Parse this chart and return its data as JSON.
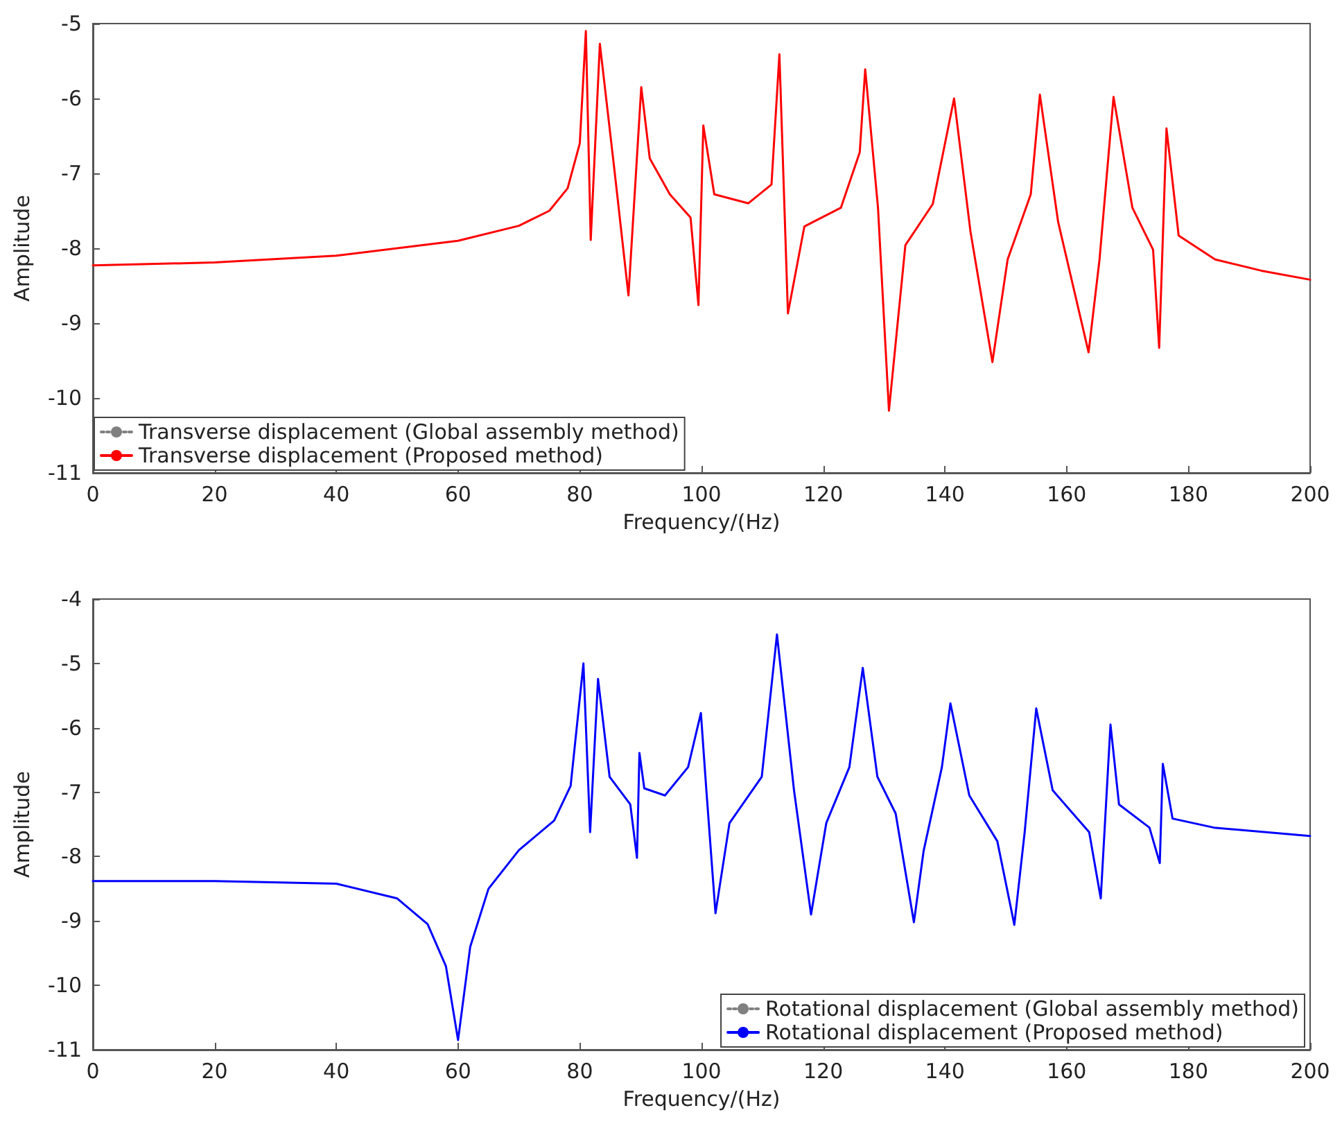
{
  "chart_data": [
    {
      "type": "line",
      "xlabel": "Frequency/(Hz)",
      "ylabel": "Amplitude",
      "xlim": [
        0,
        200
      ],
      "xticks": [
        0,
        20,
        40,
        60,
        80,
        100,
        120,
        140,
        160,
        180,
        200
      ],
      "ylim": [
        -11,
        -5
      ],
      "yticks": [
        -11,
        -10,
        -9,
        -8,
        -7,
        -6,
        -5
      ],
      "legend": "bottom left",
      "x": [
        0,
        20,
        40,
        60,
        70,
        75,
        78,
        80,
        81.0,
        81.8,
        83.3,
        85.7,
        88.0,
        90.1,
        91.5,
        94.8,
        98.2,
        99.5,
        100.3,
        102.1,
        107.7,
        111.5,
        112.8,
        114.2,
        116.9,
        122.9,
        126.0,
        126.9,
        129.0,
        130.8,
        133.5,
        138.0,
        141.5,
        144.2,
        147.8,
        150.3,
        154.1,
        155.6,
        158.6,
        163.6,
        165.4,
        167.7,
        170.8,
        174.2,
        175.2,
        176.4,
        178.4,
        184.4,
        192.0,
        200
      ],
      "series": [
        {
          "name": "Transverse displacement (Global assembly method)",
          "color": "#808080",
          "line_style": "dotted",
          "values": [
            null,
            null,
            null,
            null,
            null,
            null,
            null,
            null,
            null,
            null,
            null,
            null,
            null,
            null,
            null,
            null,
            null,
            null,
            null,
            null,
            null,
            null,
            null,
            null,
            null,
            null,
            null,
            null,
            null,
            null,
            null,
            null,
            null,
            null,
            null,
            null,
            null,
            null,
            null,
            null,
            null,
            null,
            null,
            null,
            null,
            null,
            null,
            null,
            null,
            null
          ]
        },
        {
          "name": "Transverse displacement (Proposed method)",
          "color": "#ff0000",
          "line_style": "solid",
          "values": [
            -8.23,
            -8.19,
            -8.1,
            -7.9,
            -7.7,
            -7.5,
            -7.2,
            -6.6,
            -5.1,
            -7.89,
            -5.27,
            -6.96,
            -8.63,
            -5.85,
            -6.8,
            -7.28,
            -7.59,
            -8.76,
            -6.36,
            -7.28,
            -7.4,
            -7.15,
            -5.41,
            -8.87,
            -7.71,
            -7.46,
            -6.72,
            -5.61,
            -7.46,
            -10.17,
            -7.96,
            -7.41,
            -6.0,
            -7.78,
            -9.52,
            -8.15,
            -7.28,
            -5.95,
            -7.65,
            -9.39,
            -8.15,
            -5.98,
            -7.46,
            -8.02,
            -9.33,
            -6.4,
            -7.83,
            -8.15,
            -8.3,
            -8.42
          ]
        }
      ]
    },
    {
      "type": "line",
      "xlabel": "Frequency/(Hz)",
      "ylabel": "Amplitude",
      "xlim": [
        0,
        200
      ],
      "xticks": [
        0,
        20,
        40,
        60,
        80,
        100,
        120,
        140,
        160,
        180,
        200
      ],
      "ylim": [
        -11,
        -4
      ],
      "yticks": [
        -11,
        -10,
        -9,
        -8,
        -7,
        -6,
        -5,
        -4
      ],
      "legend": "bottom right",
      "x": [
        0,
        20,
        40,
        50,
        55,
        58,
        60,
        62,
        65,
        70,
        75.8,
        78.5,
        80.6,
        81.7,
        83.0,
        84.9,
        88.3,
        89.4,
        89.8,
        90.6,
        94.0,
        97.8,
        99.9,
        100.8,
        102.3,
        104.6,
        109.9,
        112.4,
        115.2,
        118.0,
        120.5,
        124.3,
        126.5,
        128.9,
        131.9,
        134.9,
        136.5,
        139.5,
        140.9,
        144.0,
        148.6,
        151.4,
        153.1,
        155.0,
        157.7,
        163.7,
        165.6,
        167.2,
        168.6,
        173.6,
        175.3,
        175.8,
        177.4,
        184.2,
        200
      ],
      "series": [
        {
          "name": "Rotational displacement (Global assembly method)",
          "color": "#808080",
          "line_style": "dotted",
          "values": [
            null,
            null,
            null,
            null,
            null,
            null,
            null,
            null,
            null,
            null,
            null,
            null,
            null,
            null,
            null,
            null,
            null,
            null,
            null,
            null,
            null,
            null,
            null,
            null,
            null,
            null,
            null,
            null,
            null,
            null,
            null,
            null,
            null,
            null,
            null,
            null,
            null,
            null,
            null,
            null,
            null,
            null,
            null,
            null,
            null,
            null,
            null,
            null,
            null,
            null,
            null,
            null,
            null,
            null,
            null
          ]
        },
        {
          "name": "Rotational displacement (Proposed method)",
          "color": "#0000ff",
          "line_style": "solid",
          "values": [
            -8.38,
            -8.38,
            -8.42,
            -8.65,
            -9.05,
            -9.7,
            -10.85,
            -9.4,
            -8.5,
            -7.9,
            -7.44,
            -6.9,
            -5.0,
            -7.62,
            -5.24,
            -6.76,
            -7.19,
            -8.02,
            -6.39,
            -6.94,
            -7.05,
            -6.61,
            -5.77,
            -6.97,
            -8.88,
            -7.48,
            -6.76,
            -4.55,
            -6.97,
            -8.9,
            -7.48,
            -6.61,
            -5.07,
            -6.76,
            -7.33,
            -9.02,
            -7.91,
            -6.61,
            -5.62,
            -7.05,
            -7.76,
            -9.06,
            -7.62,
            -5.7,
            -6.97,
            -7.62,
            -8.65,
            -5.95,
            -7.19,
            -7.55,
            -8.1,
            -6.56,
            -7.41,
            -7.55,
            -7.68
          ]
        }
      ]
    }
  ]
}
